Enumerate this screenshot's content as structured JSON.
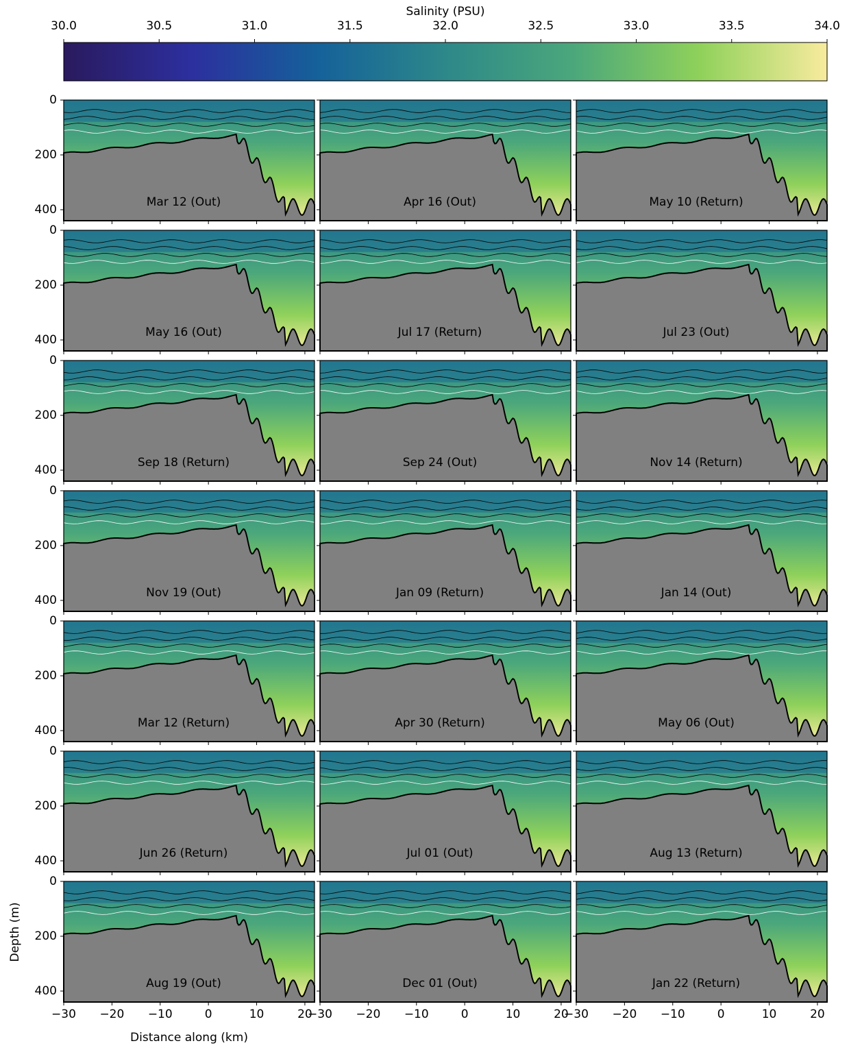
{
  "chart_data": {
    "type": "section-grid",
    "colorbar": {
      "label": "Salinity (PSU)",
      "lim": [
        30,
        34
      ],
      "ticks": [
        {
          "value": 30,
          "label": "30.0"
        },
        30.5,
        {
          "value": 31,
          "label": "31.0"
        },
        31.5,
        {
          "value": 32,
          "label": "32.0"
        },
        32.5,
        {
          "value": 33,
          "label": "33.0"
        },
        33.5,
        {
          "value": 34,
          "label": "34.0"
        }
      ],
      "colormap": [
        "#2a1a5e",
        "#2c2f9e",
        "#15619a",
        "#2d8889",
        "#4ba77b",
        "#8fd15a",
        "#f8eb9e"
      ]
    },
    "xlabel": "Distance along (km)",
    "ylabel": "Depth (m)",
    "xlim": [
      -30,
      22
    ],
    "xticks": [
      {
        "value": -30,
        "label": "−30"
      },
      {
        "value": -20,
        "label": "−20"
      },
      {
        "value": -10,
        "label": "−10"
      },
      0,
      10,
      20
    ],
    "ylim": [
      440,
      0
    ],
    "yticks": [
      0,
      200,
      400
    ],
    "panels": [
      "Mar 12 (Out)",
      "Apr 16 (Out)",
      "May 10 (Return)",
      "May 16 (Out)",
      "Jul 17 (Return)",
      "Jul 23 (Out)",
      "Sep 18 (Return)",
      "Sep 24 (Out)",
      "Nov 14 (Return)",
      "Nov 19 (Out)",
      "Jan 09 (Return)",
      "Jan 14 (Out)",
      "Mar 12 (Return)",
      "Apr 30 (Return)",
      "May 06 (Out)",
      "Jun 26 (Return)",
      "Jul 01 (Out)",
      "Aug 13 (Return)",
      "Aug 19 (Out)",
      "Dec 01 (Out)",
      "Jan 22 (Return)"
    ],
    "bathymetry_color": "#808080"
  }
}
